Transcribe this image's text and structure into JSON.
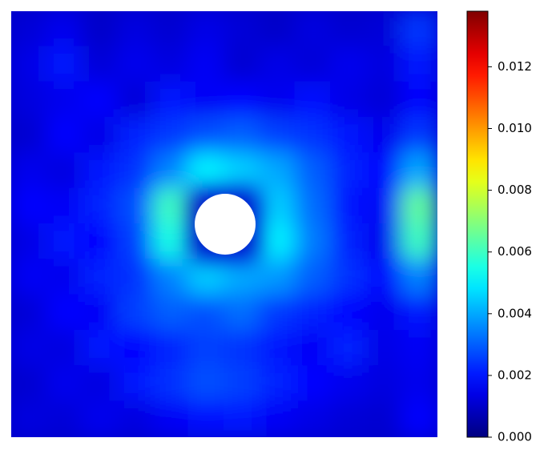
{
  "chart_data": {
    "type": "heatmap",
    "colormap": "jet",
    "z": [
      [
        0.0012,
        0.0015,
        0.001,
        0.0013,
        0.0011,
        0.0014,
        0.0012,
        0.001,
        0.0013,
        0.0011,
        0.0012,
        0.0025
      ],
      [
        0.0014,
        0.002,
        0.0012,
        0.0015,
        0.0013,
        0.0016,
        0.0011,
        0.0014,
        0.0012,
        0.0015,
        0.0013,
        0.002
      ],
      [
        0.0013,
        0.0015,
        0.0018,
        0.0012,
        0.002,
        0.0016,
        0.0018,
        0.0015,
        0.0019,
        0.0014,
        0.0012,
        0.0018
      ],
      [
        0.0011,
        0.0018,
        0.0014,
        0.0022,
        0.0025,
        0.0028,
        0.003,
        0.0026,
        0.0024,
        0.002,
        0.0015,
        0.0025
      ],
      [
        0.0015,
        0.0013,
        0.002,
        0.0024,
        0.0035,
        0.005,
        0.0045,
        0.004,
        0.003,
        0.0022,
        0.0018,
        0.004
      ],
      [
        0.0018,
        0.0016,
        0.0022,
        0.0028,
        0.006,
        null,
        null,
        0.0045,
        0.0032,
        0.002,
        0.0016,
        0.0065
      ],
      [
        0.0014,
        0.002,
        0.0018,
        0.0026,
        0.0055,
        null,
        null,
        0.005,
        0.0034,
        0.0022,
        0.0015,
        0.006
      ],
      [
        0.0016,
        0.0015,
        0.0022,
        0.0024,
        0.0035,
        0.0045,
        0.004,
        0.0038,
        0.003,
        0.0024,
        0.0018,
        0.0035
      ],
      [
        0.0012,
        0.0018,
        0.0016,
        0.0026,
        0.003,
        0.0028,
        0.0032,
        0.0025,
        0.0022,
        0.0018,
        0.0015,
        0.002
      ],
      [
        0.0014,
        0.0013,
        0.002,
        0.0018,
        0.0022,
        0.0026,
        0.0024,
        0.002,
        0.0016,
        0.0022,
        0.0014,
        0.0016
      ],
      [
        0.0011,
        0.0015,
        0.0013,
        0.002,
        0.0024,
        0.0028,
        0.0026,
        0.0022,
        0.0018,
        0.0015,
        0.0013,
        0.0015
      ],
      [
        0.0013,
        0.0012,
        0.0015,
        0.0013,
        0.0016,
        0.0019,
        0.002,
        0.0016,
        0.0014,
        0.0012,
        0.0011,
        0.0018
      ]
    ],
    "clim": [
      0,
      0.0138
    ],
    "cticks": [
      {
        "value": 0,
        "label": "0.000"
      },
      0.002,
      0.004,
      0.006,
      0.008,
      {
        "value": 0.01,
        "label": "0.010"
      },
      0.012
    ]
  }
}
